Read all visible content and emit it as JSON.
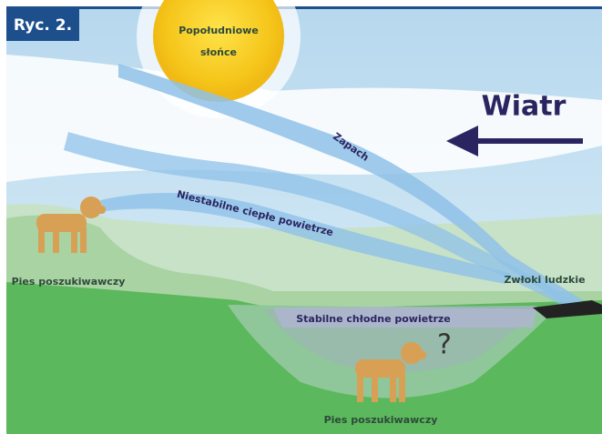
{
  "figure_label": "Ryc. 2.",
  "sun": {
    "label_lines": [
      "Popołudniowe",
      "słońce"
    ]
  },
  "wind": {
    "label": "Wiatr"
  },
  "streams": {
    "scent": "Zapach",
    "unstable_air": "Niestabilne ciepłe powietrze",
    "stable_air": "Stabilne chłodne powietrze"
  },
  "dogs": [
    {
      "label": "Pies poszukiwawczy"
    },
    {
      "label": "Pies poszukiwawczy",
      "question": "?"
    }
  ],
  "body": {
    "label": "Zwłoki ludzkie"
  }
}
